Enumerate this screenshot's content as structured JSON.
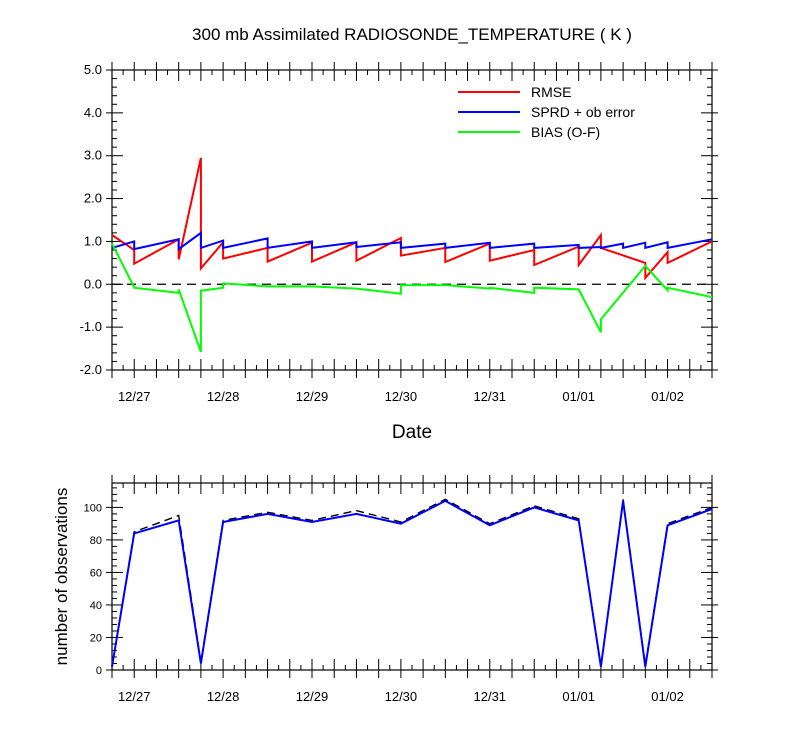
{
  "chart_data": [
    {
      "type": "line",
      "title": "300 mb Assimilated RADIOSONDE_TEMPERATURE ( K )",
      "xlabel": "Date",
      "ylabel": "",
      "ylim": [
        -2.0,
        5.0
      ],
      "yticks": [
        "5.0",
        "4.0",
        "3.0",
        "2.0",
        "1.0",
        "0.0",
        "-1.0",
        "-2.0"
      ],
      "ytick_values": [
        5,
        4,
        3,
        2,
        1,
        0,
        -1,
        -2
      ],
      "xlim": [
        0,
        6.75
      ],
      "xtick_labels": [
        "12/27",
        "12/28",
        "12/29",
        "12/30",
        "12/31",
        "01/01",
        "01/02"
      ],
      "xtick_values": [
        0.25,
        1.25,
        2.25,
        3.25,
        4.25,
        5.25,
        6.25
      ],
      "legend": {
        "position": "top-right",
        "entries": [
          {
            "label": "RMSE",
            "color": "#ff0000"
          },
          {
            "label": "SPRD + ob error",
            "color": "#0000ff"
          },
          {
            "label": "BIAS (O-F)",
            "color": "#00ff00"
          }
        ]
      },
      "zero_line": {
        "value": 0,
        "style": "dashed"
      },
      "series": [
        {
          "name": "RMSE",
          "color": "#ff0000",
          "x": [
            0,
            0.25,
            0.25,
            0.75,
            0.75,
            1,
            1,
            1.25,
            1.25,
            1.75,
            1.75,
            2.25,
            2.25,
            2.75,
            2.75,
            3.25,
            3.25,
            3.75,
            3.75,
            4.25,
            4.25,
            4.75,
            4.75,
            5.25,
            5.25,
            5.5,
            5.5,
            6,
            6,
            6.25,
            6.25,
            6.75
          ],
          "y": [
            1.15,
            0.8,
            0.48,
            1.05,
            0.58,
            2.95,
            0.37,
            0.98,
            0.6,
            0.85,
            0.53,
            0.97,
            0.53,
            0.98,
            0.55,
            1.08,
            0.67,
            0.85,
            0.52,
            0.95,
            0.55,
            0.8,
            0.45,
            0.88,
            0.45,
            1.15,
            0.85,
            0.5,
            0.15,
            0.75,
            0.5,
            1.0
          ]
        },
        {
          "name": "SPRD + ob error",
          "color": "#0000ff",
          "x": [
            0,
            0.25,
            0.25,
            0.75,
            0.75,
            1,
            1,
            1.25,
            1.25,
            1.75,
            1.75,
            2.25,
            2.25,
            2.75,
            2.75,
            3.25,
            3.25,
            3.75,
            3.75,
            4.25,
            4.25,
            4.75,
            4.75,
            5.25,
            5.25,
            5.5,
            5.5,
            5.75,
            5.75,
            6,
            6,
            6.25,
            6.25,
            6.75
          ],
          "y": [
            0.85,
            1.0,
            0.82,
            1.05,
            0.82,
            1.2,
            0.85,
            1.02,
            0.85,
            1.07,
            0.85,
            1.0,
            0.85,
            0.98,
            0.87,
            0.98,
            0.85,
            0.95,
            0.85,
            0.97,
            0.85,
            0.95,
            0.85,
            0.92,
            0.85,
            0.87,
            0.85,
            0.95,
            0.85,
            0.97,
            0.85,
            0.98,
            0.85,
            1.05
          ]
        },
        {
          "name": "BIAS (O-F)",
          "color": "#00ff00",
          "x": [
            0,
            0.25,
            0.25,
            0.75,
            0.75,
            1,
            1,
            1.25,
            1.25,
            1.75,
            1.75,
            2.25,
            2.25,
            2.75,
            2.75,
            3.25,
            3.25,
            3.75,
            3.75,
            4.25,
            4.25,
            4.75,
            4.75,
            5.25,
            5.25,
            5.5,
            5.5,
            6,
            6,
            6.25,
            6.25,
            6.75
          ],
          "y": [
            0.95,
            -0.07,
            -0.08,
            -0.2,
            -0.12,
            -1.58,
            -0.15,
            -0.08,
            0.02,
            -0.05,
            -0.05,
            -0.05,
            -0.05,
            -0.1,
            -0.1,
            -0.22,
            -0.02,
            -0.02,
            -0.02,
            -0.1,
            -0.08,
            -0.2,
            -0.08,
            -0.12,
            -0.12,
            -1.12,
            -0.82,
            0.43,
            0.43,
            -0.14,
            -0.08,
            -0.3
          ]
        }
      ]
    },
    {
      "type": "line",
      "title": "",
      "xlabel": "",
      "ylabel": "number of observations",
      "ylim": [
        0,
        115
      ],
      "yticks": [
        "0",
        "20",
        "40",
        "60",
        "80",
        "100"
      ],
      "ytick_values": [
        0,
        20,
        40,
        60,
        80,
        100
      ],
      "xlim": [
        0,
        6.75
      ],
      "xtick_labels": [
        "12/27",
        "12/28",
        "12/29",
        "12/30",
        "12/31",
        "01/01",
        "01/02"
      ],
      "xtick_values": [
        0.25,
        1.25,
        2.25,
        3.25,
        4.25,
        5.25,
        6.25
      ],
      "series": [
        {
          "name": "observations (dashed)",
          "color": "#000000",
          "style": "dashed",
          "x": [
            0,
            0.25,
            0.75,
            1,
            1.25,
            1.75,
            2.25,
            2.75,
            3.25,
            3.75,
            4.25,
            4.75,
            5.25,
            5.5,
            5.75,
            6,
            6.25,
            6.75
          ],
          "y": [
            2,
            85,
            95,
            5,
            92,
            97,
            92,
            98,
            91,
            105,
            90,
            101,
            93,
            2,
            105,
            3,
            90,
            100
          ]
        },
        {
          "name": "observations",
          "color": "#0000ff",
          "style": "solid",
          "x": [
            0,
            0.25,
            0.75,
            1,
            1.25,
            1.75,
            2.25,
            2.75,
            3.25,
            3.75,
            4.25,
            4.75,
            5.25,
            5.5,
            5.75,
            6,
            6.25,
            6.75
          ],
          "y": [
            2,
            84,
            92,
            4,
            91,
            96,
            91,
            96,
            90,
            104,
            89,
            100,
            92,
            2,
            104,
            2,
            89,
            99
          ]
        }
      ]
    }
  ]
}
